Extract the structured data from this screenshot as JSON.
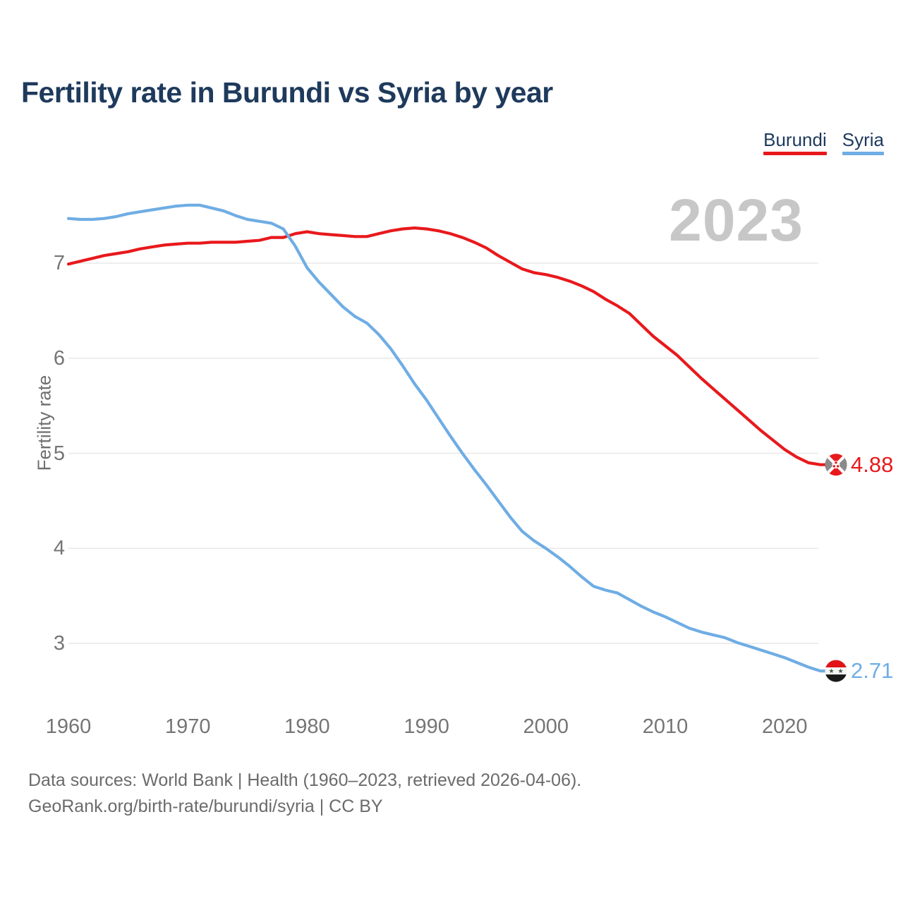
{
  "title": "Fertility rate in Burundi vs Syria by year",
  "watermark": "2023",
  "legend": {
    "items": [
      {
        "label": "Burundi",
        "color": "#e8191c"
      },
      {
        "label": "Syria",
        "color": "#6fade4"
      }
    ]
  },
  "footer": {
    "line1": "Data sources: World Bank | Health (1960–2023, retrieved 2026-04-06).",
    "line2": "GeoRank.org/birth-rate/burundi/syria | CC BY"
  },
  "chart_data": {
    "type": "line",
    "title": "Fertility rate in Burundi vs Syria by year",
    "xlabel": "",
    "ylabel": "Fertility rate",
    "grid": true,
    "legend_position": "top-right",
    "ylim": [
      2.5,
      7.8
    ],
    "yticks": [
      7,
      6,
      5,
      4,
      3
    ],
    "xticks": [
      1960,
      1970,
      1980,
      1990,
      2000,
      2010,
      2020
    ],
    "x": [
      1960,
      1961,
      1962,
      1963,
      1964,
      1965,
      1966,
      1967,
      1968,
      1969,
      1970,
      1971,
      1972,
      1973,
      1974,
      1975,
      1976,
      1977,
      1978,
      1979,
      1980,
      1981,
      1982,
      1983,
      1984,
      1985,
      1986,
      1987,
      1988,
      1989,
      1990,
      1991,
      1992,
      1993,
      1994,
      1995,
      1996,
      1997,
      1998,
      1999,
      2000,
      2001,
      2002,
      2003,
      2004,
      2005,
      2006,
      2007,
      2008,
      2009,
      2010,
      2011,
      2012,
      2013,
      2014,
      2015,
      2016,
      2017,
      2018,
      2019,
      2020,
      2021,
      2022,
      2023
    ],
    "series": [
      {
        "name": "Burundi",
        "color": "#e8191c",
        "end_label": "4.88",
        "flag": "burundi",
        "values": [
          6.99,
          7.02,
          7.05,
          7.08,
          7.1,
          7.12,
          7.15,
          7.17,
          7.19,
          7.2,
          7.21,
          7.21,
          7.22,
          7.22,
          7.22,
          7.23,
          7.24,
          7.27,
          7.27,
          7.31,
          7.33,
          7.31,
          7.3,
          7.29,
          7.28,
          7.28,
          7.31,
          7.34,
          7.36,
          7.37,
          7.36,
          7.34,
          7.31,
          7.27,
          7.22,
          7.16,
          7.08,
          7.01,
          6.94,
          6.9,
          6.88,
          6.85,
          6.81,
          6.76,
          6.7,
          6.62,
          6.55,
          6.47,
          6.35,
          6.23,
          6.13,
          6.03,
          5.91,
          5.79,
          5.68,
          5.57,
          5.46,
          5.35,
          5.24,
          5.14,
          5.04,
          4.96,
          4.9,
          4.88
        ]
      },
      {
        "name": "Syria",
        "color": "#6fade4",
        "end_label": "2.71",
        "flag": "syria",
        "values": [
          7.47,
          7.46,
          7.46,
          7.47,
          7.49,
          7.52,
          7.54,
          7.56,
          7.58,
          7.6,
          7.61,
          7.61,
          7.58,
          7.55,
          7.5,
          7.46,
          7.44,
          7.42,
          7.36,
          7.18,
          6.95,
          6.8,
          6.67,
          6.54,
          6.44,
          6.37,
          6.25,
          6.1,
          5.92,
          5.73,
          5.56,
          5.37,
          5.18,
          5.0,
          4.83,
          4.67,
          4.5,
          4.33,
          4.18,
          4.08,
          4.0,
          3.91,
          3.81,
          3.7,
          3.6,
          3.56,
          3.53,
          3.46,
          3.39,
          3.33,
          3.28,
          3.22,
          3.16,
          3.12,
          3.09,
          3.06,
          3.01,
          2.97,
          2.93,
          2.89,
          2.85,
          2.8,
          2.75,
          2.71
        ]
      }
    ]
  }
}
